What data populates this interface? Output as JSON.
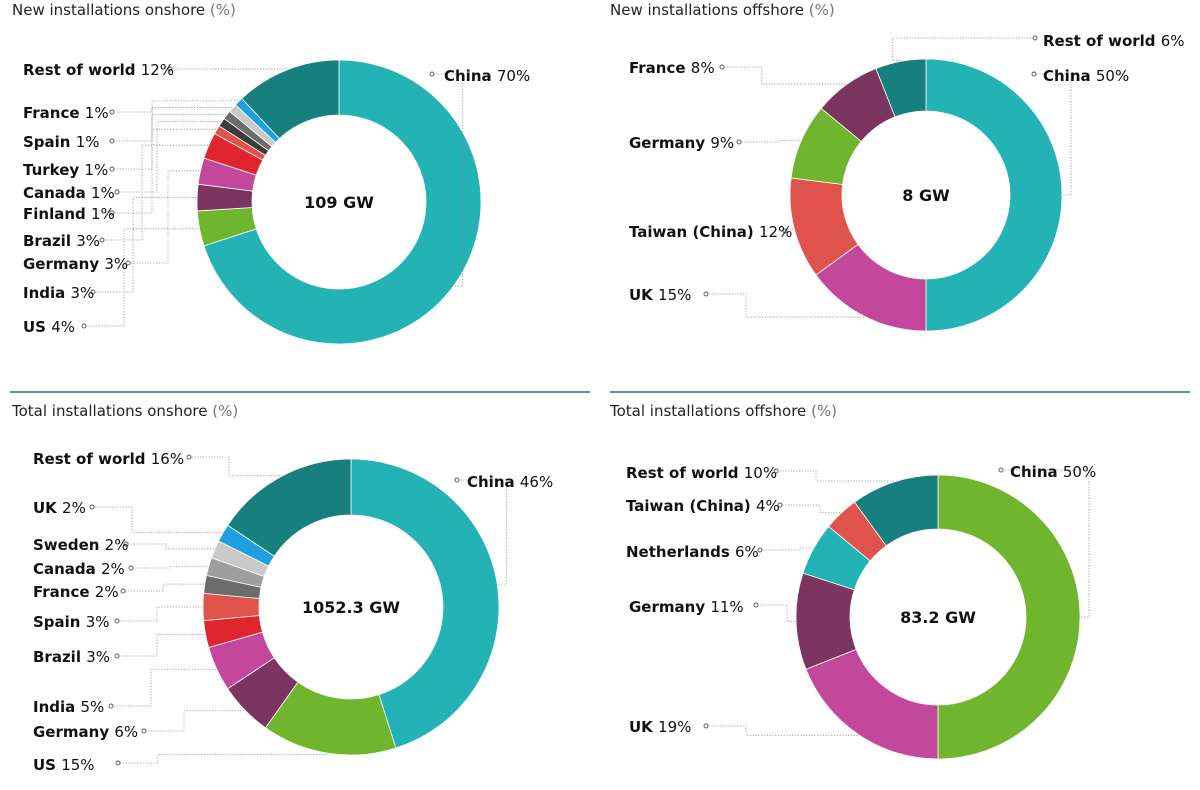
{
  "chart_data": [
    {
      "type": "donut",
      "title": "New installations onshore",
      "title_unit": " (%)",
      "center_label": "109 GW",
      "slices": [
        {
          "label": "China",
          "value": 70,
          "display": "70%",
          "color": "#23b3b5"
        },
        {
          "label": "US",
          "value": 4,
          "display": "4%",
          "color": "#6fb62e"
        },
        {
          "label": "India",
          "value": 3,
          "display": "3%",
          "color": "#7c3460"
        },
        {
          "label": "Germany",
          "value": 3,
          "display": "3%",
          "color": "#c3479a"
        },
        {
          "label": "Brazil",
          "value": 3,
          "display": "3%",
          "color": "#e0252e"
        },
        {
          "label": "Finland",
          "value": 1,
          "display": "1%",
          "color": "#e0524c"
        },
        {
          "label": "Canada",
          "value": 1,
          "display": "1%",
          "color": "#3c3c3c"
        },
        {
          "label": "Turkey",
          "value": 1,
          "display": "1%",
          "color": "#6c6c6c"
        },
        {
          "label": "Spain",
          "value": 1,
          "display": "1%",
          "color": "#c9c9c9"
        },
        {
          "label": "France",
          "value": 1,
          "display": "1%",
          "color": "#1ea0e0"
        },
        {
          "label": "Rest of world",
          "value": 12,
          "display": "12%",
          "color": "#17807f"
        }
      ]
    },
    {
      "type": "donut",
      "title": "New installations offshore",
      "title_unit": " (%)",
      "center_label": "8 GW",
      "slices": [
        {
          "label": "China",
          "value": 50,
          "display": "50%",
          "color": "#23b3b5"
        },
        {
          "label": "UK",
          "value": 15,
          "display": "15%",
          "color": "#c3479a"
        },
        {
          "label": "Taiwan (China)",
          "value": 12,
          "display": "12%",
          "color": "#e0524c"
        },
        {
          "label": "Germany",
          "value": 9,
          "display": "9%",
          "color": "#6fb62e"
        },
        {
          "label": "France",
          "value": 8,
          "display": "8%",
          "color": "#7c3460"
        },
        {
          "label": "Rest of world",
          "value": 6,
          "display": "6%",
          "color": "#17807f"
        }
      ]
    },
    {
      "type": "donut",
      "title": "Total installations onshore",
      "title_unit": " (%)",
      "center_label": "1052.3 GW",
      "slices": [
        {
          "label": "China",
          "value": 46,
          "display": "46%",
          "color": "#23b3b5"
        },
        {
          "label": "US",
          "value": 15,
          "display": "15%",
          "color": "#6fb62e"
        },
        {
          "label": "Germany",
          "value": 6,
          "display": "6%",
          "color": "#7c3460"
        },
        {
          "label": "India",
          "value": 5,
          "display": "5%",
          "color": "#c3479a"
        },
        {
          "label": "Brazil",
          "value": 3,
          "display": "3%",
          "color": "#e0252e"
        },
        {
          "label": "Spain",
          "value": 3,
          "display": "3%",
          "color": "#e0524c"
        },
        {
          "label": "France",
          "value": 2,
          "display": "2%",
          "color": "#6c6c6c"
        },
        {
          "label": "Canada",
          "value": 2,
          "display": "2%",
          "color": "#9e9e9e"
        },
        {
          "label": "Sweden",
          "value": 2,
          "display": "2%",
          "color": "#c9c9c9"
        },
        {
          "label": "UK",
          "value": 2,
          "display": "2%",
          "color": "#1ea0e0"
        },
        {
          "label": "Rest of world",
          "value": 16,
          "display": "16%",
          "color": "#17807f"
        }
      ]
    },
    {
      "type": "donut",
      "title": "Total installations offshore",
      "title_unit": " (%)",
      "center_label": "83.2 GW",
      "slices": [
        {
          "label": "China",
          "value": 50,
          "display": "50%",
          "color": "#6fb62e"
        },
        {
          "label": "UK",
          "value": 19,
          "display": "19%",
          "color": "#c3479a"
        },
        {
          "label": "Germany",
          "value": 11,
          "display": "11%",
          "color": "#7c3460"
        },
        {
          "label": "Netherlands",
          "value": 6,
          "display": "6%",
          "color": "#23b3b5"
        },
        {
          "label": "Taiwan (China)",
          "value": 4,
          "display": "4%",
          "color": "#e0524c"
        },
        {
          "label": "Rest of world",
          "value": 10,
          "display": "10%",
          "color": "#17807f"
        }
      ]
    }
  ],
  "colors": {
    "divider": "#1d7389",
    "leader": "#8a8a8a",
    "text": "#111111",
    "title_text": "#222222",
    "unit_text": "#777777"
  }
}
